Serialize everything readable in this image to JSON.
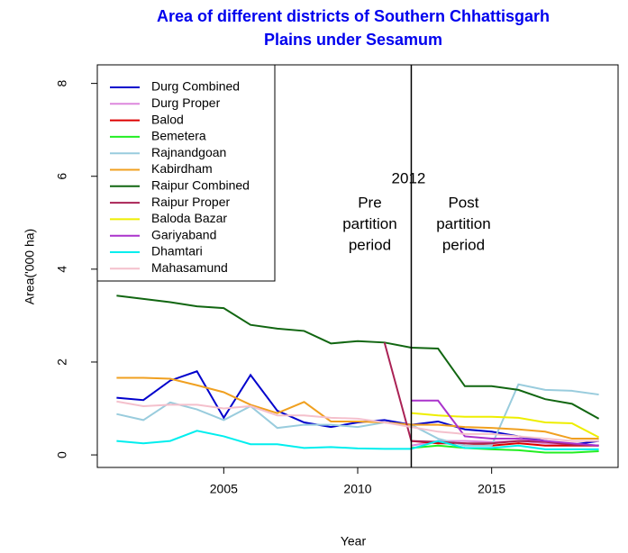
{
  "chart_data": {
    "type": "line",
    "title": [
      "Area of different districts of Southern Chhattisgarh",
      "Plains under Sesamum"
    ],
    "xlabel": "Year",
    "ylabel": "Area('000 ha)",
    "x": [
      2001,
      2002,
      2003,
      2004,
      2005,
      2006,
      2007,
      2008,
      2009,
      2010,
      2011,
      2012,
      2013,
      2014,
      2015,
      2016,
      2017,
      2018,
      2019
    ],
    "xlim": [
      2000.28,
      2019.72
    ],
    "xticks": [
      2005,
      2010,
      2015
    ],
    "ylim": [
      -0.27,
      8.4
    ],
    "yticks": [
      0,
      2,
      4,
      6,
      8
    ],
    "legend": "top-left",
    "vline": 2012,
    "annotations": [
      {
        "text": "2012",
        "color": "#ee0000"
      },
      {
        "lines": [
          "Pre",
          "partition",
          "period"
        ]
      },
      {
        "lines": [
          "Post",
          "partition",
          "period"
        ]
      }
    ],
    "series": [
      {
        "name": "Durg Combined",
        "color": "#0000cc",
        "values": [
          1.23,
          1.18,
          1.6,
          1.8,
          0.8,
          1.72,
          0.95,
          0.7,
          0.6,
          0.7,
          0.75,
          0.65,
          0.72,
          0.55,
          0.5,
          0.4,
          0.3,
          0.22,
          0.3
        ]
      },
      {
        "name": "Durg Proper",
        "color": "#dd88dd",
        "values": [
          null,
          null,
          null,
          null,
          null,
          null,
          null,
          null,
          null,
          null,
          null,
          0.2,
          0.3,
          0.3,
          0.28,
          0.3,
          0.25,
          0.22,
          0.2
        ]
      },
      {
        "name": "Balod",
        "color": "#dd0000",
        "values": [
          null,
          null,
          null,
          null,
          null,
          null,
          null,
          null,
          null,
          null,
          null,
          0.3,
          0.25,
          0.25,
          0.2,
          0.25,
          0.2,
          0.2,
          0.2
        ]
      },
      {
        "name": "Bemetera",
        "color": "#22ee22",
        "values": [
          null,
          null,
          null,
          null,
          null,
          null,
          null,
          null,
          null,
          null,
          null,
          0.15,
          0.2,
          0.15,
          0.12,
          0.1,
          0.05,
          0.05,
          0.08
        ]
      },
      {
        "name": "Rajnandgoan",
        "color": "#99ccdd",
        "values": [
          0.88,
          0.75,
          1.13,
          0.98,
          0.75,
          1.05,
          0.58,
          0.65,
          0.65,
          0.6,
          0.7,
          0.65,
          0.35,
          0.2,
          0.2,
          1.52,
          1.4,
          1.38,
          1.3
        ]
      },
      {
        "name": "Kabirdham",
        "color": "#f0a020",
        "values": [
          1.66,
          1.66,
          1.64,
          1.5,
          1.35,
          1.08,
          0.9,
          1.14,
          0.72,
          0.72,
          0.7,
          0.65,
          0.65,
          0.6,
          0.58,
          0.55,
          0.5,
          0.35,
          0.35
        ]
      },
      {
        "name": "Raipur Combined",
        "color": "#116611",
        "values": [
          3.43,
          3.36,
          3.29,
          3.2,
          3.16,
          2.8,
          2.72,
          2.67,
          2.4,
          2.45,
          2.42,
          2.31,
          2.29,
          1.48,
          1.48,
          1.4,
          1.2,
          1.1,
          0.78
        ]
      },
      {
        "name": "Raipur Proper",
        "color": "#aa2255",
        "values": [
          null,
          null,
          null,
          null,
          null,
          null,
          null,
          null,
          null,
          null,
          2.42,
          0.3,
          0.28,
          0.25,
          0.25,
          0.3,
          0.28,
          0.22,
          0.2
        ]
      },
      {
        "name": "Baloda Bazar",
        "color": "#eeee00",
        "values": [
          null,
          null,
          null,
          null,
          null,
          null,
          null,
          null,
          null,
          null,
          null,
          0.9,
          0.85,
          0.82,
          0.82,
          0.8,
          0.7,
          0.68,
          0.38
        ]
      },
      {
        "name": "Gariyaband",
        "color": "#aa33cc",
        "values": [
          null,
          null,
          null,
          null,
          null,
          null,
          null,
          null,
          null,
          null,
          null,
          1.17,
          1.17,
          0.4,
          0.35,
          0.35,
          0.3,
          0.25,
          0.2
        ]
      },
      {
        "name": "Dhamtari",
        "color": "#00eeee",
        "values": [
          0.3,
          0.25,
          0.3,
          0.52,
          0.4,
          0.23,
          0.23,
          0.15,
          0.17,
          0.14,
          0.13,
          0.13,
          0.3,
          0.15,
          0.15,
          0.2,
          0.12,
          0.12,
          0.12
        ]
      },
      {
        "name": "Mahasamund",
        "color": "#f4c0cc",
        "values": [
          1.15,
          1.05,
          1.08,
          1.08,
          1.0,
          1.05,
          0.85,
          0.85,
          0.8,
          0.78,
          0.7,
          0.6,
          0.5,
          0.45,
          0.45,
          0.4,
          0.35,
          0.3,
          0.3
        ]
      }
    ]
  }
}
